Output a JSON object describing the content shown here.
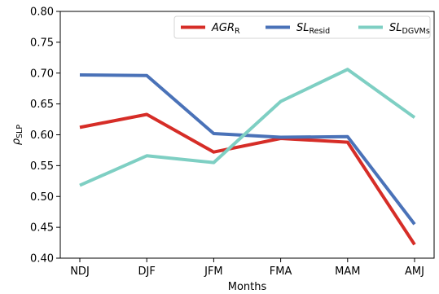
{
  "chart_data": {
    "type": "line",
    "categories": [
      "NDJ",
      "DJF",
      "JFM",
      "FMA",
      "MAM",
      "AMJ"
    ],
    "series": [
      {
        "name_main": "AGR",
        "name_sub": "R",
        "color": "#d62d27",
        "values": [
          0.612,
          0.633,
          0.572,
          0.594,
          0.588,
          0.422
        ]
      },
      {
        "name_main": "SL",
        "name_sub": "Resid",
        "color": "#4a72b8",
        "values": [
          0.697,
          0.696,
          0.602,
          0.596,
          0.597,
          0.455
        ]
      },
      {
        "name_main": "SL",
        "name_sub": "DGVMs",
        "color": "#7ecfc3",
        "values": [
          0.518,
          0.566,
          0.555,
          0.654,
          0.706,
          0.628
        ]
      }
    ],
    "yticks": [
      "0.40",
      "0.45",
      "0.50",
      "0.55",
      "0.60",
      "0.65",
      "0.70",
      "0.75",
      "0.80"
    ],
    "ylim": [
      0.4,
      0.8
    ],
    "xlabel": "Months",
    "ylabel_main": "ρ",
    "ylabel_sub": "SLP",
    "legend_position": "top-right",
    "grid": false
  }
}
